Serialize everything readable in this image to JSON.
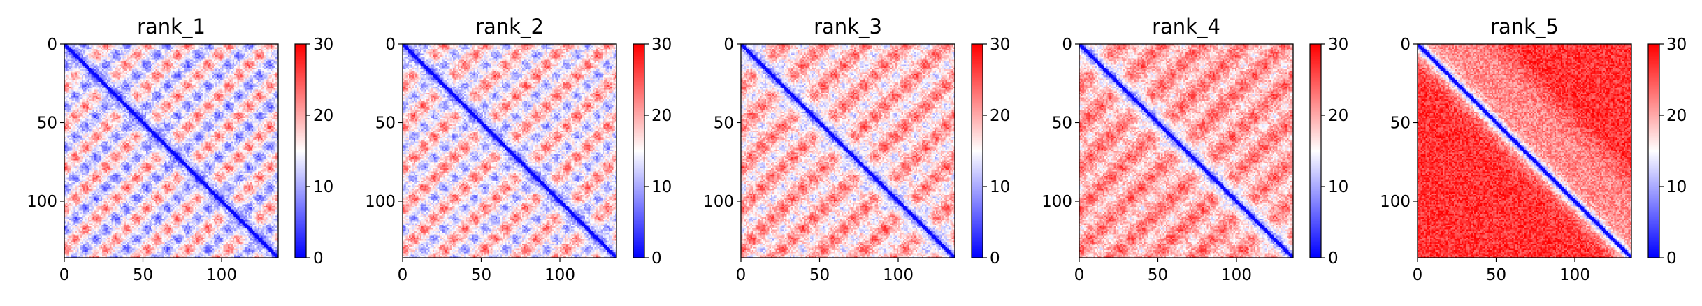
{
  "chart_data": [
    {
      "type": "heatmap",
      "title": "rank_1",
      "n": 136,
      "xlim": [
        0,
        136
      ],
      "ylim": [
        136,
        0
      ],
      "xticks": [
        0,
        50,
        100
      ],
      "yticks": [
        0,
        50,
        100
      ],
      "colorbar": {
        "min": 0,
        "max": 30,
        "ticks": [
          0,
          10,
          20,
          30
        ],
        "colors": [
          "#0000ff",
          "#ffffff",
          "#ff0000"
        ]
      },
      "offdiag_level": 0.0,
      "pattern_strength": 1.0
    },
    {
      "type": "heatmap",
      "title": "rank_2",
      "n": 136,
      "xlim": [
        0,
        136
      ],
      "ylim": [
        136,
        0
      ],
      "xticks": [
        0,
        50,
        100
      ],
      "yticks": [
        0,
        50,
        100
      ],
      "colorbar": {
        "min": 0,
        "max": 30,
        "ticks": [
          0,
          10,
          20,
          30
        ],
        "colors": [
          "#0000ff",
          "#ffffff",
          "#ff0000"
        ]
      },
      "offdiag_level": 0.1,
      "pattern_strength": 1.0
    },
    {
      "type": "heatmap",
      "title": "rank_3",
      "n": 136,
      "xlim": [
        0,
        136
      ],
      "ylim": [
        136,
        0
      ],
      "xticks": [
        0,
        50,
        100
      ],
      "yticks": [
        0,
        50,
        100
      ],
      "colorbar": {
        "min": 0,
        "max": 30,
        "ticks": [
          0,
          10,
          20,
          30
        ],
        "colors": [
          "#0000ff",
          "#ffffff",
          "#ff0000"
        ]
      },
      "offdiag_level": 0.3,
      "pattern_strength": 0.85
    },
    {
      "type": "heatmap",
      "title": "rank_4",
      "n": 136,
      "xlim": [
        0,
        136
      ],
      "ylim": [
        136,
        0
      ],
      "xticks": [
        0,
        50,
        100
      ],
      "yticks": [
        0,
        50,
        100
      ],
      "colorbar": {
        "min": 0,
        "max": 30,
        "ticks": [
          0,
          10,
          20,
          30
        ],
        "colors": [
          "#0000ff",
          "#ffffff",
          "#ff0000"
        ]
      },
      "offdiag_level": 0.45,
      "pattern_strength": 0.7
    },
    {
      "type": "heatmap",
      "title": "rank_5",
      "n": 136,
      "xlim": [
        0,
        136
      ],
      "ylim": [
        136,
        0
      ],
      "xticks": [
        0,
        50,
        100
      ],
      "yticks": [
        0,
        50,
        100
      ],
      "colorbar": {
        "min": 0,
        "max": 30,
        "ticks": [
          0,
          10,
          20,
          30
        ],
        "colors": [
          "#0000ff",
          "#ffffff",
          "#ff0000"
        ]
      },
      "offdiag_level": 1.0,
      "pattern_strength": 0.2
    }
  ]
}
